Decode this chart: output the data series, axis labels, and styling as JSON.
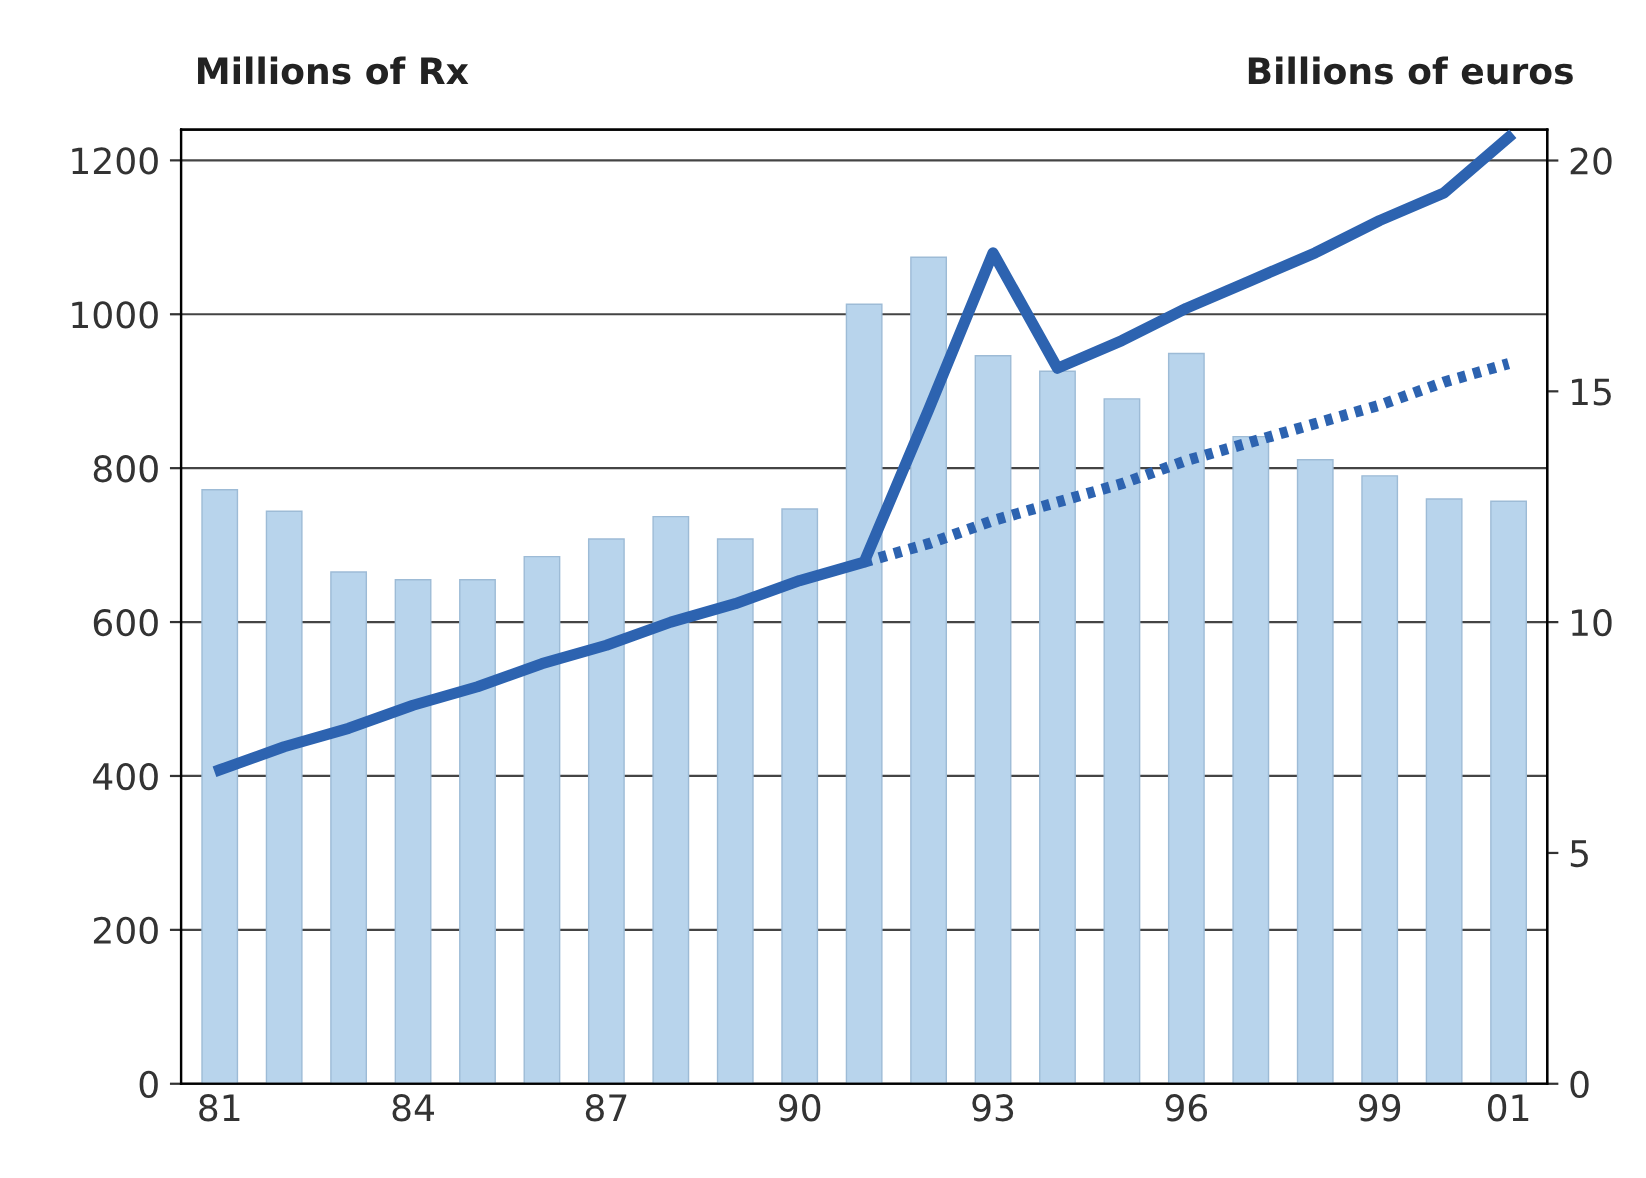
{
  "chart_data": {
    "type": "bar",
    "ylabel": "Millions of Rx",
    "y2label": "Billions of euros",
    "categories": [
      "81",
      null,
      null,
      "84",
      null,
      null,
      "87",
      null,
      null,
      "90",
      null,
      null,
      "93",
      null,
      null,
      "96",
      null,
      null,
      "99",
      null,
      "01"
    ],
    "series": [
      {
        "color": "#b8d4ec",
        "values": [
          772,
          744,
          665,
          655,
          655,
          685,
          708,
          737,
          708,
          747,
          1013,
          1074,
          946,
          926,
          890,
          949,
          841,
          811,
          790,
          760,
          757
        ]
      },
      {
        "type": "line",
        "axis": "y2",
        "color": "#2d63b0",
        "line_style": "solid",
        "values": [
          6.8,
          7.3,
          7.7,
          8.2,
          8.6,
          9.1,
          9.5,
          10.0,
          10.4,
          10.9,
          11.3,
          14.6,
          18.0,
          15.5,
          16.1,
          16.8,
          17.4,
          18.0,
          18.7,
          19.3,
          20.5
        ]
      },
      {
        "type": "line",
        "axis": "y2",
        "color": "#2d63b0",
        "line_style": "dotted",
        "values": [
          null,
          null,
          null,
          null,
          null,
          null,
          null,
          null,
          null,
          null,
          11.3,
          11.7,
          12.2,
          12.6,
          13.0,
          13.5,
          13.9,
          14.3,
          14.7,
          15.2,
          15.6
        ]
      }
    ],
    "ylim": [
      0,
      1240
    ],
    "yticks": [
      0,
      200,
      400,
      600,
      800,
      1000,
      1200
    ],
    "y2lim": [
      0,
      20.67
    ],
    "y2ticks": [
      0,
      5,
      10,
      15,
      20
    ],
    "grid": "y",
    "legend": false
  }
}
